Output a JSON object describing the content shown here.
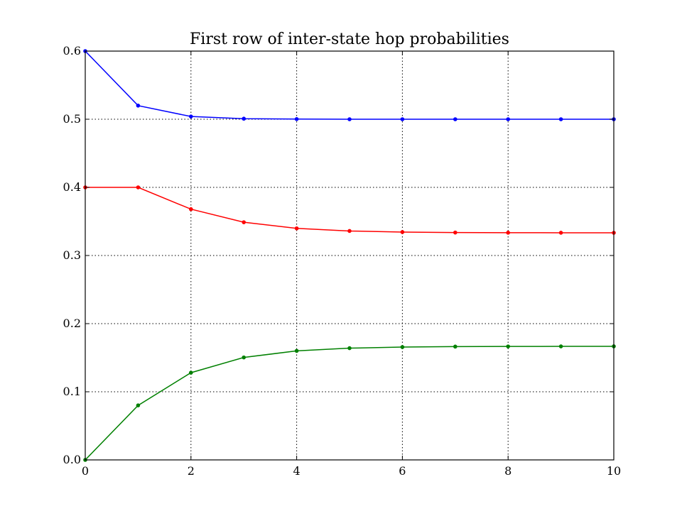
{
  "chart_data": {
    "type": "line",
    "title": "First row of inter-state hop probabilities",
    "xlabel": "",
    "ylabel": "",
    "xlim": [
      0,
      10
    ],
    "ylim": [
      0.0,
      0.6
    ],
    "x": [
      0,
      1,
      2,
      3,
      4,
      5,
      6,
      7,
      8,
      9,
      10
    ],
    "x_ticks": [
      0,
      2,
      4,
      6,
      8,
      10
    ],
    "x_tick_labels": [
      "0",
      "2",
      "4",
      "6",
      "8",
      "10"
    ],
    "y_ticks": [
      0.0,
      0.1,
      0.2,
      0.3,
      0.4,
      0.5,
      0.6
    ],
    "y_tick_labels": [
      "0.0",
      "0.1",
      "0.2",
      "0.3",
      "0.4",
      "0.5",
      "0.6"
    ],
    "grid": true,
    "legend": false,
    "series": [
      {
        "color": "#0000ff",
        "values": [
          0.6,
          0.52,
          0.504,
          0.5008,
          0.5002,
          0.5,
          0.5,
          0.5,
          0.5,
          0.5,
          0.5
        ]
      },
      {
        "color": "#ff0000",
        "values": [
          0.4,
          0.4,
          0.368,
          0.3488,
          0.3398,
          0.336,
          0.3344,
          0.3337,
          0.3335,
          0.3334,
          0.3333
        ]
      },
      {
        "color": "#008000",
        "values": [
          0.0,
          0.08,
          0.128,
          0.1504,
          0.16,
          0.164,
          0.1656,
          0.1663,
          0.1665,
          0.1666,
          0.1667
        ]
      }
    ]
  }
}
